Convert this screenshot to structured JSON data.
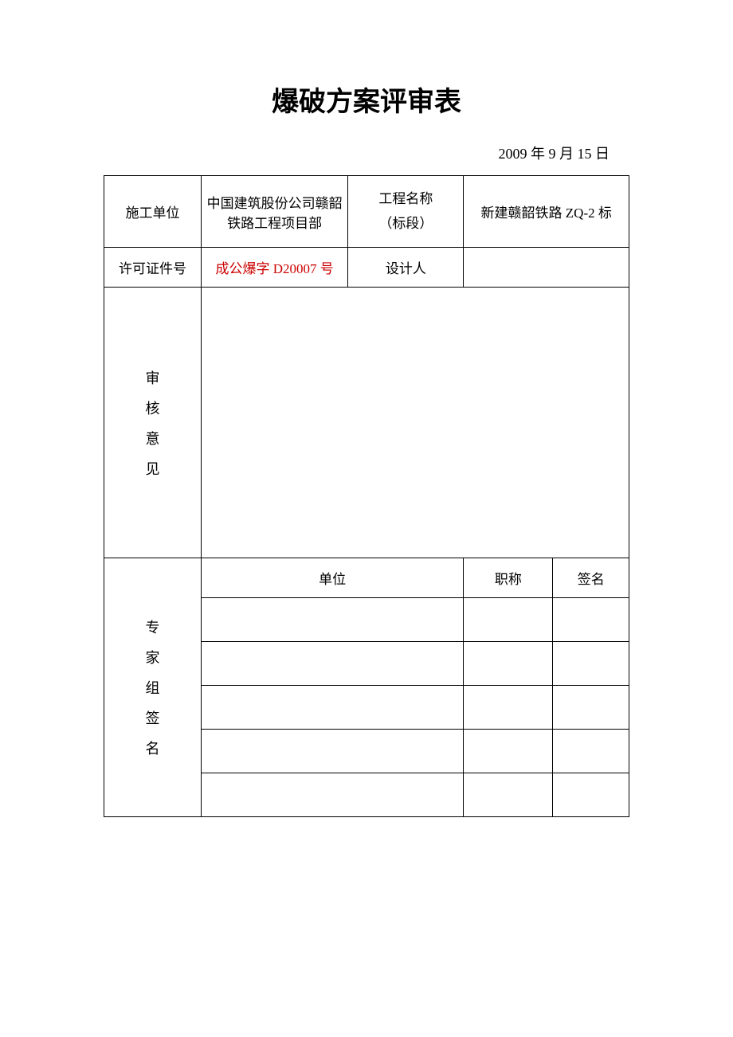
{
  "document": {
    "title": "爆破方案评审表",
    "date": "2009 年 9 月 15 日"
  },
  "table": {
    "row1": {
      "label_construction_unit": "施工单位",
      "value_construction_unit": "中国建筑股份公司赣韶铁路工程项目部",
      "label_project_name_line1": "工程名称",
      "label_project_name_line2": "（标段）",
      "value_project_name": "新建赣韶铁路 ZQ-2 标"
    },
    "row2": {
      "label_license_no": "许可证件号",
      "value_license_no": "成公爆字 D20007 号",
      "label_designer": "设计人",
      "value_designer": ""
    },
    "review_opinion": {
      "char1": "审",
      "char2": "核",
      "char3": "意",
      "char4": "见",
      "content": ""
    },
    "expert_section": {
      "char1": "专",
      "char2": "家",
      "char3": "组",
      "char4": "签",
      "char5": "名",
      "header_unit": "单位",
      "header_title": "职称",
      "header_signature": "签名",
      "rows": [
        {
          "unit": "",
          "title": "",
          "signature": ""
        },
        {
          "unit": "",
          "title": "",
          "signature": ""
        },
        {
          "unit": "",
          "title": "",
          "signature": ""
        },
        {
          "unit": "",
          "title": "",
          "signature": ""
        },
        {
          "unit": "",
          "title": "",
          "signature": ""
        }
      ]
    }
  },
  "colors": {
    "text": "#000000",
    "red_text": "#cc0000",
    "border": "#000000",
    "background": "#ffffff"
  },
  "typography": {
    "title_fontsize": 34,
    "body_fontsize": 17,
    "date_fontsize": 18,
    "font_family": "SimSun"
  }
}
